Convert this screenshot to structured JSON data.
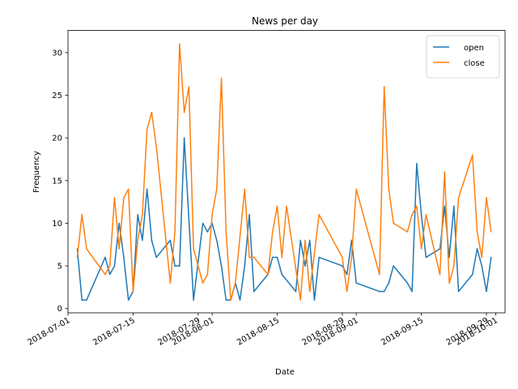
{
  "chart_data": {
    "type": "line",
    "title": "News per day",
    "xlabel": "Date",
    "ylabel": "Frequency",
    "xlim": [
      "2018-07-01",
      "2018-10-03"
    ],
    "ylim": [
      -0.5,
      32.6
    ],
    "x_ticks": [
      "2018-07-01",
      "2018-07-15",
      "2018-07-29",
      "2018-08-01",
      "2018-08-15",
      "2018-08-29",
      "2018-09-01",
      "2018-09-15",
      "2018-09-29",
      "2018-10-01"
    ],
    "y_ticks": [
      0,
      5,
      10,
      15,
      20,
      25,
      30
    ],
    "legend_position": "top-right",
    "grid": false,
    "series": [
      {
        "name": "open",
        "color": "#1f77b4",
        "points": [
          [
            "2018-07-03",
            7
          ],
          [
            "2018-07-04",
            1
          ],
          [
            "2018-07-05",
            1
          ],
          [
            "2018-07-09",
            6
          ],
          [
            "2018-07-10",
            4
          ],
          [
            "2018-07-11",
            5
          ],
          [
            "2018-07-12",
            10
          ],
          [
            "2018-07-13",
            6
          ],
          [
            "2018-07-14",
            1
          ],
          [
            "2018-07-15",
            2
          ],
          [
            "2018-07-16",
            11
          ],
          [
            "2018-07-17",
            8
          ],
          [
            "2018-07-18",
            14
          ],
          [
            "2018-07-19",
            8
          ],
          [
            "2018-07-20",
            6
          ],
          [
            "2018-07-23",
            8
          ],
          [
            "2018-07-24",
            5
          ],
          [
            "2018-07-25",
            5
          ],
          [
            "2018-07-26",
            20
          ],
          [
            "2018-07-28",
            1
          ],
          [
            "2018-07-30",
            10
          ],
          [
            "2018-07-31",
            9
          ],
          [
            "2018-08-01",
            10
          ],
          [
            "2018-08-02",
            8
          ],
          [
            "2018-08-03",
            5
          ],
          [
            "2018-08-04",
            1
          ],
          [
            "2018-08-05",
            1
          ],
          [
            "2018-08-06",
            3
          ],
          [
            "2018-08-07",
            1
          ],
          [
            "2018-08-08",
            5
          ],
          [
            "2018-08-09",
            11
          ],
          [
            "2018-08-10",
            2
          ],
          [
            "2018-08-13",
            4
          ],
          [
            "2018-08-14",
            6
          ],
          [
            "2018-08-15",
            6
          ],
          [
            "2018-08-16",
            4
          ],
          [
            "2018-08-19",
            2
          ],
          [
            "2018-08-20",
            8
          ],
          [
            "2018-08-21",
            5
          ],
          [
            "2018-08-22",
            8
          ],
          [
            "2018-08-23",
            1
          ],
          [
            "2018-08-24",
            6
          ],
          [
            "2018-08-29",
            5
          ],
          [
            "2018-08-30",
            4
          ],
          [
            "2018-08-31",
            8
          ],
          [
            "2018-09-01",
            3
          ],
          [
            "2018-09-06",
            2
          ],
          [
            "2018-09-07",
            2
          ],
          [
            "2018-09-08",
            3
          ],
          [
            "2018-09-09",
            5
          ],
          [
            "2018-09-12",
            3
          ],
          [
            "2018-09-13",
            2
          ],
          [
            "2018-09-14",
            17
          ],
          [
            "2018-09-15",
            11
          ],
          [
            "2018-09-16",
            6
          ],
          [
            "2018-09-19",
            7
          ],
          [
            "2018-09-20",
            12
          ],
          [
            "2018-09-21",
            6
          ],
          [
            "2018-09-22",
            12
          ],
          [
            "2018-09-23",
            2
          ],
          [
            "2018-09-26",
            4
          ],
          [
            "2018-09-27",
            7
          ],
          [
            "2018-09-28",
            5
          ],
          [
            "2018-09-29",
            2
          ],
          [
            "2018-09-30",
            6
          ]
        ]
      },
      {
        "name": "close",
        "color": "#ff7f0e",
        "points": [
          [
            "2018-07-03",
            6
          ],
          [
            "2018-07-04",
            11
          ],
          [
            "2018-07-05",
            7
          ],
          [
            "2018-07-09",
            4
          ],
          [
            "2018-07-10",
            5
          ],
          [
            "2018-07-11",
            13
          ],
          [
            "2018-07-12",
            7
          ],
          [
            "2018-07-13",
            13
          ],
          [
            "2018-07-14",
            14
          ],
          [
            "2018-07-15",
            2
          ],
          [
            "2018-07-16",
            8
          ],
          [
            "2018-07-17",
            11
          ],
          [
            "2018-07-18",
            21
          ],
          [
            "2018-07-19",
            23
          ],
          [
            "2018-07-20",
            19
          ],
          [
            "2018-07-23",
            3
          ],
          [
            "2018-07-24",
            9
          ],
          [
            "2018-07-25",
            31
          ],
          [
            "2018-07-26",
            23
          ],
          [
            "2018-07-27",
            26
          ],
          [
            "2018-07-28",
            7
          ],
          [
            "2018-07-30",
            3
          ],
          [
            "2018-07-31",
            4
          ],
          [
            "2018-08-01",
            11
          ],
          [
            "2018-08-02",
            14
          ],
          [
            "2018-08-03",
            27
          ],
          [
            "2018-08-04",
            9
          ],
          [
            "2018-08-05",
            1
          ],
          [
            "2018-08-06",
            3
          ],
          [
            "2018-08-08",
            14
          ],
          [
            "2018-08-09",
            6
          ],
          [
            "2018-08-10",
            6
          ],
          [
            "2018-08-13",
            4
          ],
          [
            "2018-08-14",
            9
          ],
          [
            "2018-08-15",
            12
          ],
          [
            "2018-08-16",
            6
          ],
          [
            "2018-08-17",
            12
          ],
          [
            "2018-08-20",
            1
          ],
          [
            "2018-08-21",
            8
          ],
          [
            "2018-08-22",
            2
          ],
          [
            "2018-08-24",
            11
          ],
          [
            "2018-08-29",
            6
          ],
          [
            "2018-08-30",
            2
          ],
          [
            "2018-08-31",
            6
          ],
          [
            "2018-09-01",
            14
          ],
          [
            "2018-09-06",
            4
          ],
          [
            "2018-09-07",
            26
          ],
          [
            "2018-09-08",
            14
          ],
          [
            "2018-09-09",
            10
          ],
          [
            "2018-09-12",
            9
          ],
          [
            "2018-09-13",
            11
          ],
          [
            "2018-09-14",
            12
          ],
          [
            "2018-09-15",
            7
          ],
          [
            "2018-09-16",
            11
          ],
          [
            "2018-09-19",
            4
          ],
          [
            "2018-09-20",
            16
          ],
          [
            "2018-09-21",
            3
          ],
          [
            "2018-09-22",
            5
          ],
          [
            "2018-09-23",
            13
          ],
          [
            "2018-09-26",
            18
          ],
          [
            "2018-09-27",
            9
          ],
          [
            "2018-09-28",
            6
          ],
          [
            "2018-09-29",
            13
          ],
          [
            "2018-09-30",
            9
          ]
        ]
      }
    ]
  }
}
